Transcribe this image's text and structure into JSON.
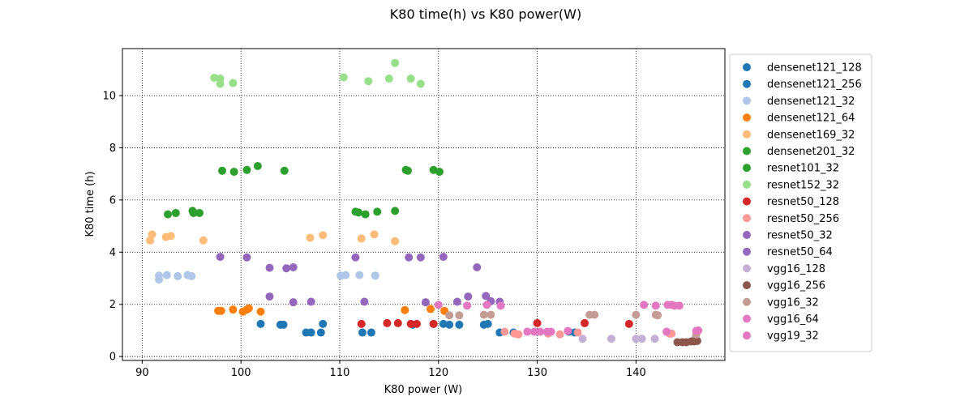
{
  "chart_data": {
    "type": "scatter",
    "title": "K80 time(h) vs K80 power(W)",
    "xlabel": "K80 power (W)",
    "ylabel": "K80 time (h)",
    "xlim": [
      88,
      149
    ],
    "ylim": [
      -0.15,
      11.8
    ],
    "xticks": [
      90,
      100,
      110,
      120,
      130,
      140
    ],
    "yticks": [
      0,
      2,
      4,
      6,
      8,
      10
    ],
    "grid": true,
    "grid_style": "dotted",
    "legend_position": "right-outside",
    "series": [
      {
        "name": "densenet121_128",
        "color": "#1f77b4",
        "points": [
          [
            102,
            1.25
          ],
          [
            104,
            1.22
          ],
          [
            104.3,
            1.22
          ],
          [
            106.6,
            0.92
          ],
          [
            107.1,
            0.92
          ],
          [
            108.1,
            0.92
          ],
          [
            108.3,
            1.25
          ],
          [
            112.3,
            0.92
          ],
          [
            113.2,
            0.92
          ],
          [
            117.4,
            1.22
          ],
          [
            119.5,
            1.25
          ],
          [
            121.1,
            1.22
          ],
          [
            122.1,
            1.22
          ]
        ]
      },
      {
        "name": "densenet121_256",
        "color": "#1f77b4",
        "points": [
          [
            120.5,
            1.25
          ],
          [
            124.6,
            1.22
          ],
          [
            125,
            1.25
          ],
          [
            126.2,
            0.92
          ],
          [
            127.6,
            0.92
          ],
          [
            133.2,
            0.95
          ],
          [
            133.8,
            0.92
          ]
        ]
      },
      {
        "name": "densenet121_32",
        "color": "#aec7e8",
        "points": [
          [
            91.7,
            2.95
          ],
          [
            91.7,
            3.1
          ],
          [
            92.5,
            3.12
          ],
          [
            93.6,
            3.08
          ],
          [
            94.6,
            3.12
          ],
          [
            95,
            3.08
          ],
          [
            110.1,
            3.1
          ],
          [
            110.6,
            3.12
          ],
          [
            112,
            3.12
          ],
          [
            113.6,
            3.1
          ]
        ]
      },
      {
        "name": "densenet121_64",
        "color": "#ff7f0e",
        "points": [
          [
            97.7,
            1.75
          ],
          [
            98,
            1.75
          ],
          [
            99.2,
            1.8
          ],
          [
            100.2,
            1.72
          ],
          [
            100.6,
            1.8
          ],
          [
            100.8,
            1.85
          ],
          [
            102,
            1.72
          ],
          [
            116.6,
            1.78
          ],
          [
            119.2,
            1.82
          ],
          [
            120.6,
            1.75
          ]
        ]
      },
      {
        "name": "densenet169_32",
        "color": "#ffbb78",
        "points": [
          [
            90.8,
            4.45
          ],
          [
            91,
            4.68
          ],
          [
            92.4,
            4.58
          ],
          [
            92.9,
            4.62
          ],
          [
            96.2,
            4.45
          ],
          [
            107,
            4.55
          ],
          [
            108.3,
            4.65
          ],
          [
            112.2,
            4.52
          ],
          [
            113.5,
            4.68
          ],
          [
            115.6,
            4.42
          ]
        ]
      },
      {
        "name": "densenet201_32",
        "color": "#2ca02c",
        "points": [
          [
            92.6,
            5.45
          ],
          [
            93.4,
            5.5
          ],
          [
            95.1,
            5.58
          ],
          [
            95.2,
            5.5
          ],
          [
            95.8,
            5.5
          ],
          [
            111.6,
            5.55
          ],
          [
            111.9,
            5.52
          ],
          [
            112.6,
            5.45
          ],
          [
            113.8,
            5.55
          ],
          [
            115.6,
            5.58
          ]
        ]
      },
      {
        "name": "resnet101_32",
        "color": "#2ca02c",
        "points": [
          [
            98.1,
            7.12
          ],
          [
            99.3,
            7.08
          ],
          [
            100.6,
            7.15
          ],
          [
            101.7,
            7.3
          ],
          [
            104.4,
            7.12
          ],
          [
            116.7,
            7.15
          ],
          [
            116.9,
            7.12
          ],
          [
            119.5,
            7.15
          ],
          [
            120.1,
            7.08
          ]
        ]
      },
      {
        "name": "resnet152_32",
        "color": "#98df8a",
        "points": [
          [
            97.3,
            10.68
          ],
          [
            97.9,
            10.65
          ],
          [
            97.9,
            10.45
          ],
          [
            99.2,
            10.48
          ],
          [
            110.4,
            10.7
          ],
          [
            112.9,
            10.55
          ],
          [
            115,
            10.65
          ],
          [
            115.6,
            11.25
          ],
          [
            117.2,
            10.65
          ],
          [
            118.2,
            10.45
          ]
        ]
      },
      {
        "name": "resnet50_128",
        "color": "#d62728",
        "points": [
          [
            112.2,
            1.25
          ],
          [
            114.8,
            1.28
          ],
          [
            115.9,
            1.28
          ],
          [
            117.2,
            1.25
          ],
          [
            117.8,
            1.25
          ],
          [
            119.5,
            1.25
          ],
          [
            130,
            1.28
          ],
          [
            134.8,
            1.28
          ],
          [
            139.3,
            1.25
          ]
        ]
      },
      {
        "name": "resnet50_256",
        "color": "#ff9896",
        "points": [
          [
            126.7,
            0.95
          ],
          [
            127.7,
            0.88
          ],
          [
            128.1,
            0.85
          ],
          [
            131.1,
            0.88
          ],
          [
            132.3,
            0.85
          ],
          [
            134.1,
            0.92
          ],
          [
            143.4,
            0.88
          ],
          [
            143.6,
            0.88
          ]
        ]
      },
      {
        "name": "resnet50_32",
        "color": "#9467bd",
        "points": [
          [
            97.9,
            3.82
          ],
          [
            100.6,
            3.8
          ],
          [
            102.9,
            3.4
          ],
          [
            104.6,
            3.38
          ],
          [
            105.3,
            3.42
          ],
          [
            111.6,
            3.8
          ],
          [
            117,
            3.8
          ],
          [
            118.2,
            3.8
          ],
          [
            120.5,
            3.82
          ],
          [
            123.9,
            3.42
          ]
        ]
      },
      {
        "name": "resnet50_64",
        "color": "#9467bd",
        "points": [
          [
            102.9,
            2.3
          ],
          [
            105.3,
            2.08
          ],
          [
            107.1,
            2.1
          ],
          [
            112.5,
            2.1
          ],
          [
            118.7,
            2.08
          ],
          [
            121.9,
            2.1
          ],
          [
            123,
            2.3
          ],
          [
            124.8,
            2.32
          ],
          [
            125.3,
            2.12
          ],
          [
            126.2,
            2.1
          ]
        ]
      },
      {
        "name": "vgg16_128",
        "color": "#c5b0d5",
        "points": [
          [
            134.6,
            0.68
          ],
          [
            137.5,
            0.68
          ],
          [
            140,
            0.68
          ],
          [
            140.6,
            0.68
          ],
          [
            141.9,
            0.68
          ],
          [
            146,
            0.72
          ]
        ]
      },
      {
        "name": "vgg16_256",
        "color": "#8c564b",
        "points": [
          [
            144.2,
            0.55
          ],
          [
            144.7,
            0.55
          ],
          [
            145.1,
            0.55
          ],
          [
            145.6,
            0.58
          ],
          [
            145.9,
            0.58
          ],
          [
            146.2,
            0.6
          ]
        ]
      },
      {
        "name": "vgg16_32",
        "color": "#c49c94",
        "points": [
          [
            121.1,
            1.58
          ],
          [
            122.1,
            1.58
          ],
          [
            124.6,
            1.6
          ],
          [
            125.3,
            1.6
          ],
          [
            135.3,
            1.6
          ],
          [
            135.8,
            1.6
          ],
          [
            140,
            1.6
          ],
          [
            142,
            1.6
          ],
          [
            142.2,
            1.58
          ],
          [
            146.1,
            0.85
          ]
        ]
      },
      {
        "name": "vgg16_64",
        "color": "#e377c2",
        "points": [
          [
            129,
            0.95
          ],
          [
            129.7,
            0.95
          ],
          [
            130.3,
            0.95
          ],
          [
            131,
            0.95
          ],
          [
            131.4,
            0.95
          ],
          [
            133.1,
            0.98
          ],
          [
            143.1,
            0.95
          ],
          [
            146.1,
            0.98
          ],
          [
            146.3,
            1
          ]
        ]
      },
      {
        "name": "vgg19_32",
        "color": "#e377c2",
        "points": [
          [
            120,
            1.98
          ],
          [
            122.9,
            1.95
          ],
          [
            124.9,
            1.98
          ],
          [
            126.3,
            1.95
          ],
          [
            140.8,
            1.98
          ],
          [
            142,
            1.95
          ],
          [
            143.2,
            1.98
          ],
          [
            143.6,
            1.98
          ],
          [
            143.9,
            1.95
          ],
          [
            144.4,
            1.95
          ]
        ]
      }
    ]
  }
}
